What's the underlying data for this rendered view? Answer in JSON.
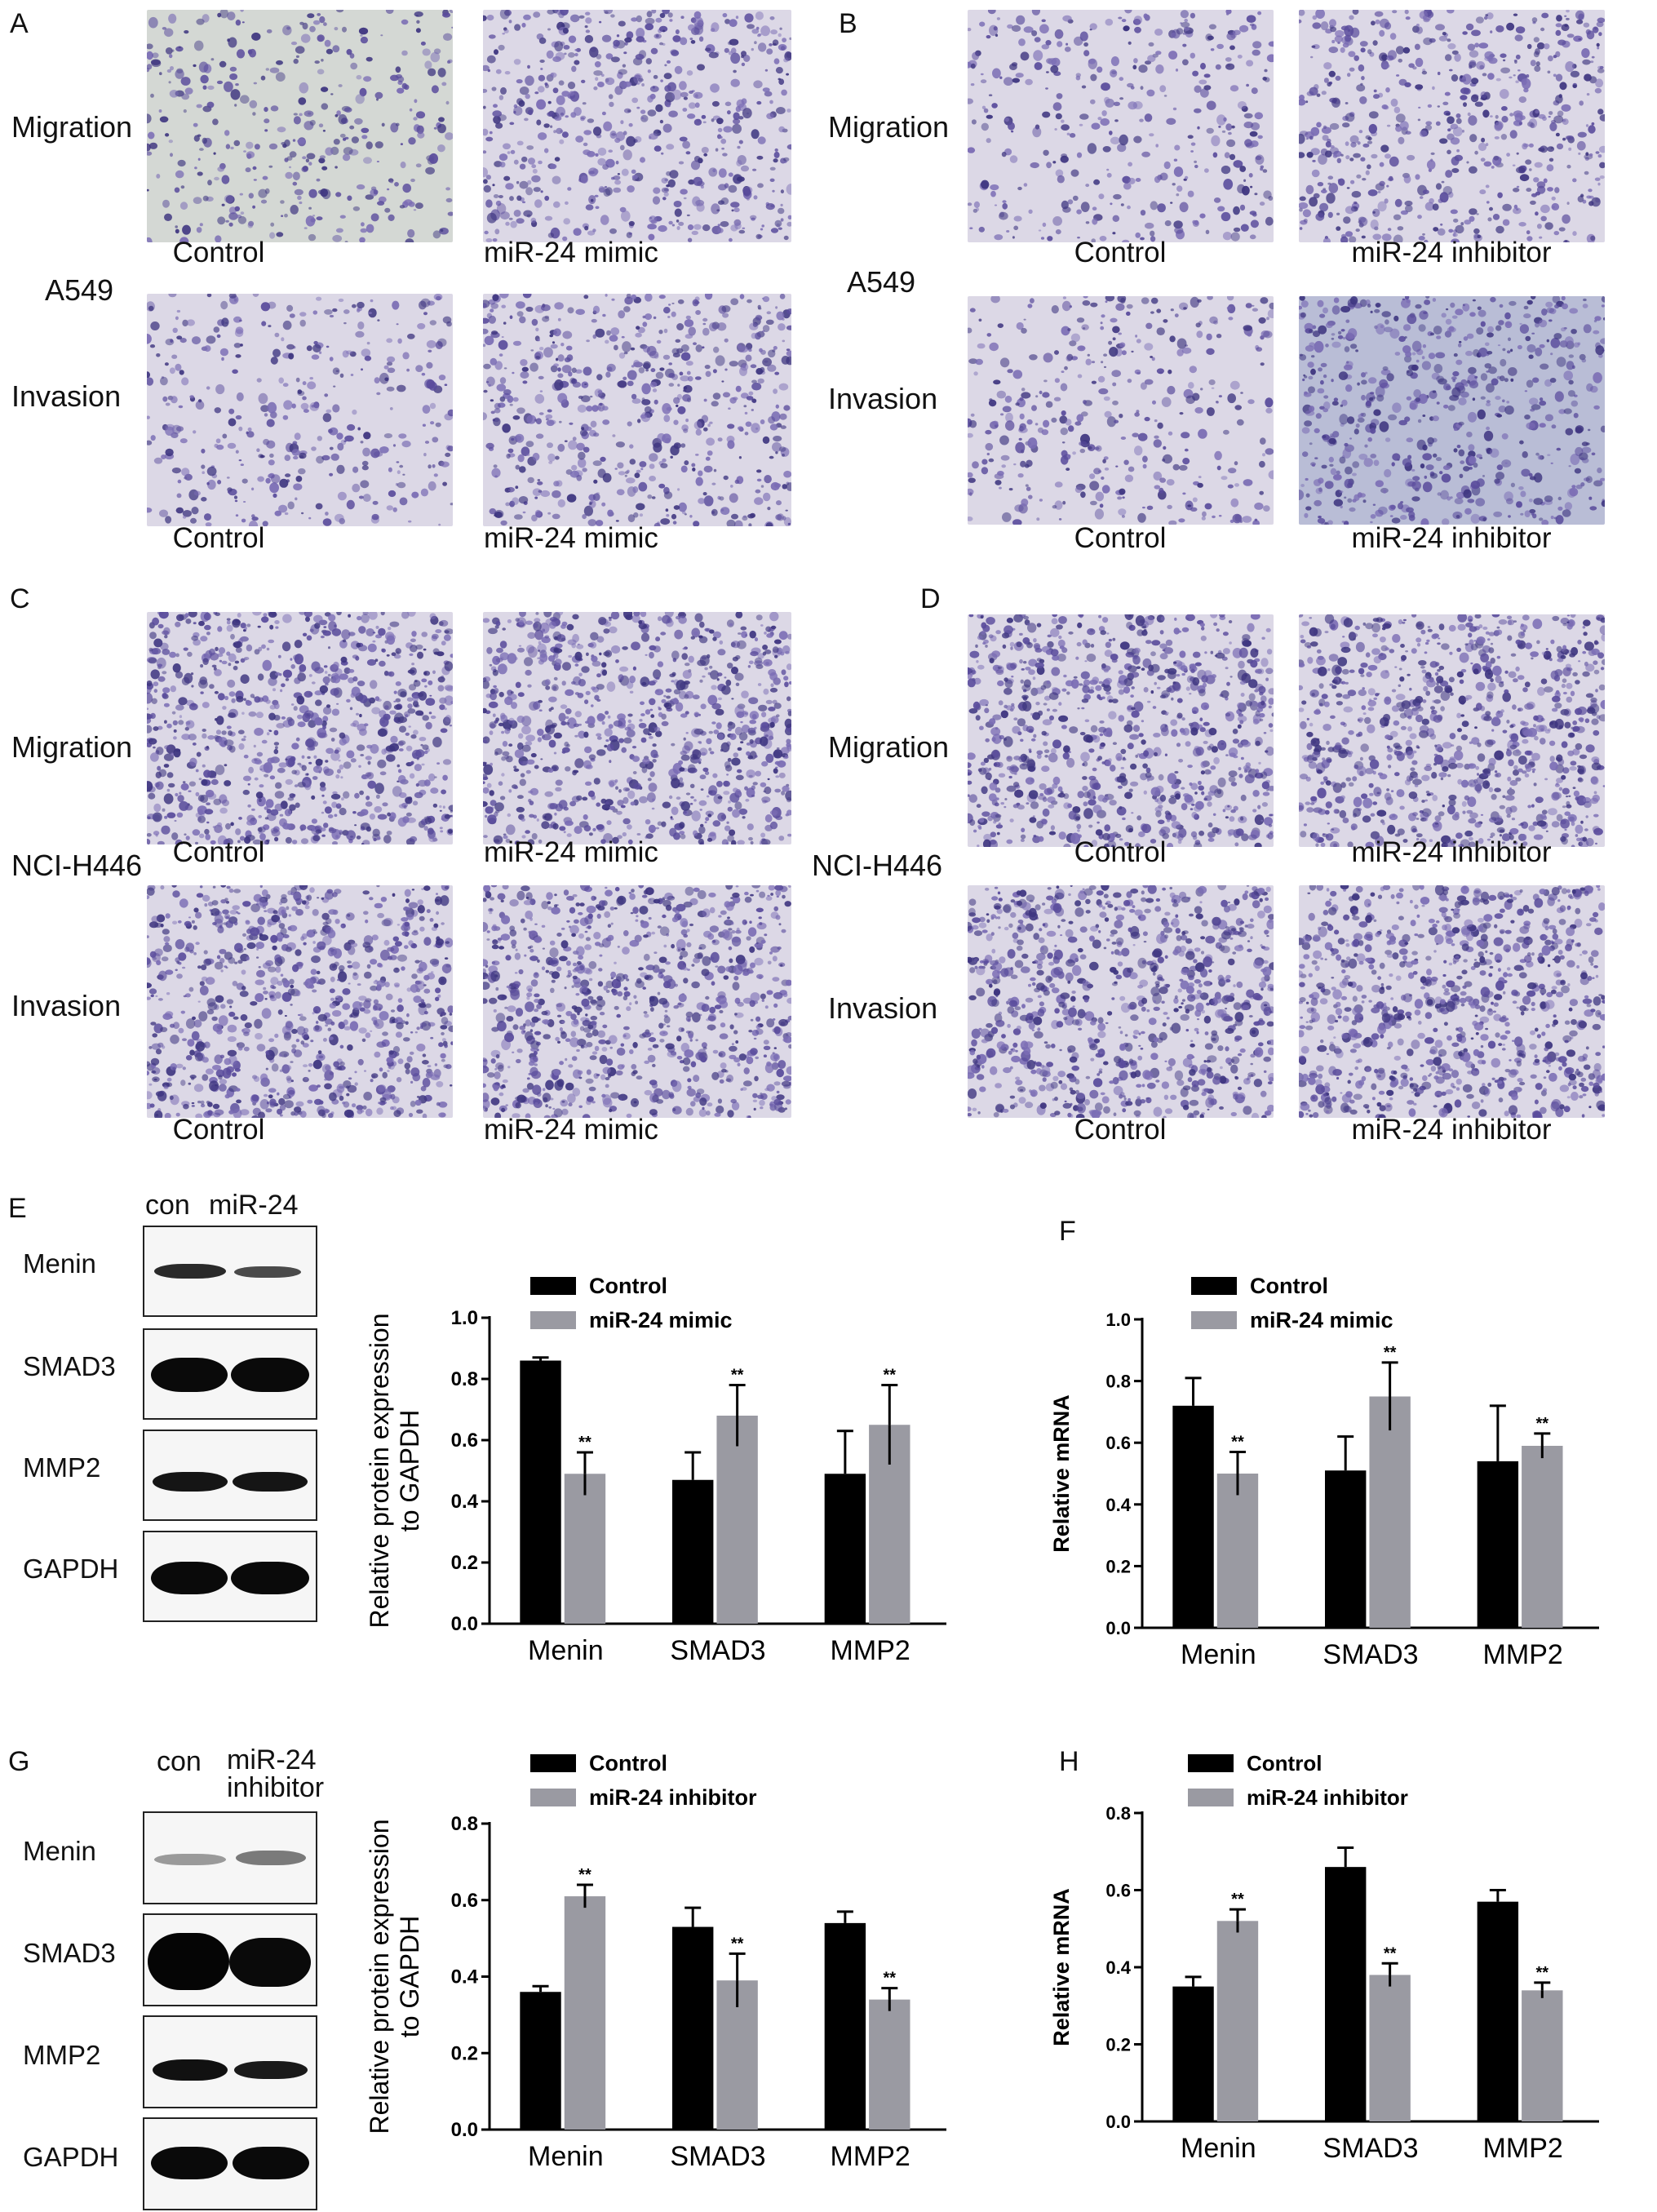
{
  "panels": {
    "A": {
      "letter": "A",
      "cell_line": "A549",
      "rows": [
        "Migration",
        "Invasion"
      ],
      "conditions": [
        "Control",
        "miR-24 mimic"
      ]
    },
    "B": {
      "letter": "B",
      "cell_line": "A549",
      "rows": [
        "Migration",
        "Invasion"
      ],
      "conditions": [
        "Control",
        "miR-24 inhibitor"
      ]
    },
    "C": {
      "letter": "C",
      "cell_line": "NCI-H446",
      "rows": [
        "Migration",
        "Invasion"
      ],
      "conditions": [
        "Control",
        "miR-24 mimic"
      ]
    },
    "D": {
      "letter": "D",
      "cell_line": "NCI-H446",
      "rows": [
        "Migration",
        "Invasion"
      ],
      "conditions": [
        "Control",
        "miR-24 inhibitor"
      ]
    }
  },
  "blots": {
    "E": {
      "letter": "E",
      "header": [
        "con",
        "miR-24"
      ],
      "proteins": [
        "Menin",
        "SMAD3",
        "MMP2",
        "GAPDH"
      ]
    },
    "G": {
      "letter": "G",
      "header": [
        "con",
        "miR-24",
        "inhibitor"
      ],
      "proteins": [
        "Menin",
        "SMAD3",
        "MMP2",
        "GAPDH"
      ]
    }
  },
  "letters": {
    "F": "F",
    "H": "H"
  },
  "colors": {
    "control": "#000000",
    "treatment": "#9a9aa2",
    "stain_light": "#d8d6e4",
    "stain_dark": "#4a3f8f"
  },
  "chart_data": [
    {
      "id": "E-chart",
      "type": "bar",
      "title": "",
      "xlabel": "",
      "ylabel": "Relative protein expression to GAPDH",
      "ylim": [
        0,
        1.0
      ],
      "yticks": [
        "0.0",
        "0.2",
        "0.4",
        "0.6",
        "0.8",
        "1.0"
      ],
      "categories": [
        "Menin",
        "SMAD3",
        "MMP2"
      ],
      "series": [
        {
          "name": "Control",
          "values": [
            0.86,
            0.47,
            0.49
          ],
          "errors": [
            0.01,
            0.09,
            0.14
          ],
          "sig": [
            "",
            "",
            ""
          ]
        },
        {
          "name": "miR-24 mimic",
          "values": [
            0.49,
            0.68,
            0.65
          ],
          "errors": [
            0.07,
            0.1,
            0.13
          ],
          "sig": [
            "**",
            "**",
            "**"
          ]
        }
      ],
      "legend": "top-right"
    },
    {
      "id": "F-chart",
      "type": "bar",
      "title": "",
      "xlabel": "",
      "ylabel": "Relative mRNA",
      "ylim": [
        0,
        1.0
      ],
      "yticks": [
        "0.0",
        "0.2",
        "0.4",
        "0.6",
        "0.8",
        "1.0"
      ],
      "categories": [
        "Menin",
        "SMAD3",
        "MMP2"
      ],
      "series": [
        {
          "name": "Control",
          "values": [
            0.72,
            0.51,
            0.54
          ],
          "errors": [
            0.09,
            0.11,
            0.18
          ],
          "sig": [
            "",
            "",
            ""
          ]
        },
        {
          "name": "miR-24 mimic",
          "values": [
            0.5,
            0.75,
            0.59
          ],
          "errors": [
            0.07,
            0.11,
            0.04
          ],
          "sig": [
            "**",
            "**",
            "**"
          ]
        }
      ],
      "legend": "top-right"
    },
    {
      "id": "G-chart",
      "type": "bar",
      "title": "",
      "xlabel": "",
      "ylabel": "Relative protein expression to GAPDH",
      "ylim": [
        0,
        0.8
      ],
      "yticks": [
        "0.0",
        "0.2",
        "0.4",
        "0.6",
        "0.8"
      ],
      "categories": [
        "Menin",
        "SMAD3",
        "MMP2"
      ],
      "series": [
        {
          "name": "Control",
          "values": [
            0.36,
            0.53,
            0.54
          ],
          "errors": [
            0.015,
            0.05,
            0.03
          ],
          "sig": [
            "",
            "",
            ""
          ]
        },
        {
          "name": "miR-24 inhibitor",
          "values": [
            0.61,
            0.39,
            0.34
          ],
          "errors": [
            0.03,
            0.07,
            0.03
          ],
          "sig": [
            "**",
            "**",
            "**"
          ]
        }
      ],
      "legend": "top-right"
    },
    {
      "id": "H-chart",
      "type": "bar",
      "title": "",
      "xlabel": "",
      "ylabel": "Relative mRNA",
      "ylim": [
        0,
        0.8
      ],
      "yticks": [
        "0.0",
        "0.2",
        "0.4",
        "0.6",
        "0.8"
      ],
      "categories": [
        "Menin",
        "SMAD3",
        "MMP2"
      ],
      "series": [
        {
          "name": "Control",
          "values": [
            0.35,
            0.66,
            0.57
          ],
          "errors": [
            0.025,
            0.05,
            0.03
          ],
          "sig": [
            "",
            "",
            ""
          ]
        },
        {
          "name": "miR-24 inhibitor",
          "values": [
            0.52,
            0.38,
            0.34
          ],
          "errors": [
            0.03,
            0.03,
            0.02
          ],
          "sig": [
            "**",
            "**",
            "**"
          ]
        }
      ],
      "legend": "top-right"
    }
  ]
}
